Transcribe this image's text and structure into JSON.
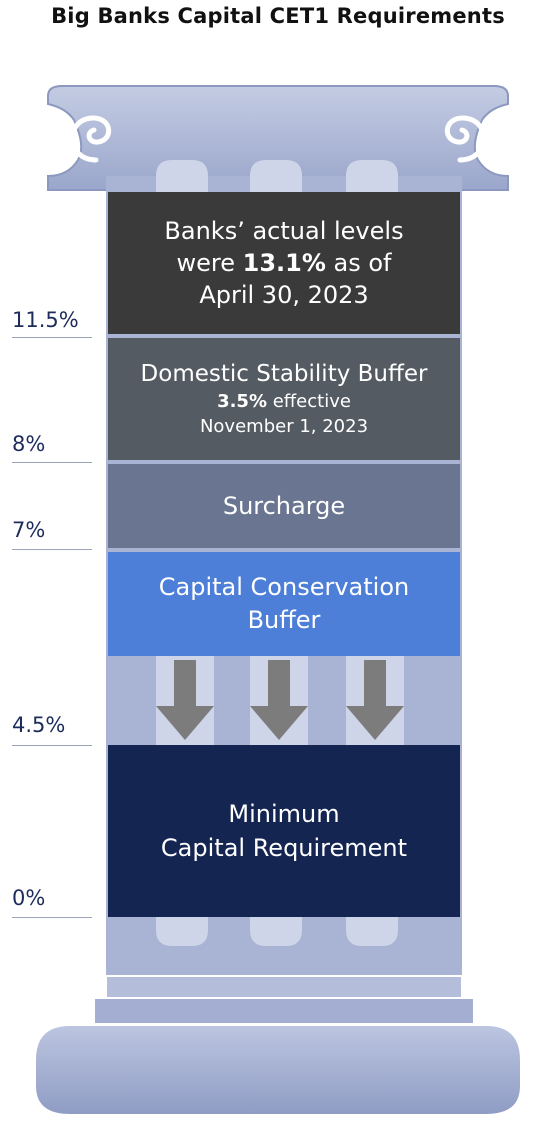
{
  "title": "Big Banks Capital CET1 Requirements",
  "levels": [
    "11.5%",
    "8%",
    "7%",
    "4.5%",
    "0%"
  ],
  "blocks": {
    "actual": {
      "line1": "Banks’ actual levels",
      "line2_prefix": "were ",
      "line2_value": "13.1%",
      "line2_suffix": " as of",
      "line3": "April 30, 2023"
    },
    "dsb": {
      "line1": "Domestic Stability Buffer",
      "line2_value": "3.5%",
      "line2_suffix": " effective",
      "line3": "November 1, 2023"
    },
    "surcharge": {
      "label": "Surcharge"
    },
    "ccb": {
      "line1": "Capital Conservation",
      "line2": "Buffer"
    },
    "minimum": {
      "line1": "Minimum",
      "line2": "Capital Requirement"
    }
  },
  "colors": {
    "pillar": "#a9b3d3",
    "actual": "#3a3a3a",
    "dsb": "#555b63",
    "surcharge": "#6a7591",
    "ccb": "#4d7fd8",
    "minimum": "#142552",
    "arrow": "#7c7c7c",
    "level_text": "#1e2c5c"
  },
  "icons": [
    "down-arrow-icon",
    "scroll-volute-icon"
  ]
}
